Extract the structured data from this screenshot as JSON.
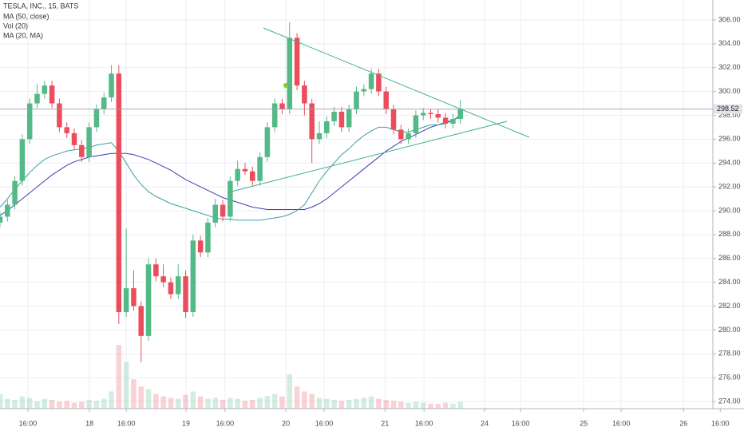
{
  "chart_data": {
    "type": "candlestick",
    "title": "TESLA, INC., 15, BATS",
    "x": [
      0,
      2,
      4,
      6,
      8,
      10,
      12,
      14,
      16,
      18,
      20,
      22,
      24,
      26,
      28,
      30,
      32,
      34,
      36,
      38,
      40,
      42,
      44,
      46,
      48,
      50,
      52,
      54,
      56,
      58,
      60,
      62,
      64,
      66,
      68,
      70,
      72,
      74,
      76,
      78,
      80,
      82,
      84,
      86,
      88,
      90,
      92,
      94,
      96,
      98,
      100,
      102,
      104,
      106,
      108,
      110,
      112,
      114,
      116,
      118,
      120,
      122,
      124
    ],
    "open": [
      289.0,
      289.5,
      290.5,
      292.5,
      296,
      299,
      299.8,
      300.5,
      299,
      297,
      296.5,
      295.5,
      294.5,
      297,
      298.5,
      299.5,
      301.5,
      281.5,
      283.5,
      282,
      279.5,
      285.5,
      284.5,
      284,
      283,
      284.5,
      281.5,
      287.5,
      286.5,
      289,
      290.5,
      289.5,
      292.5,
      293.5,
      293.3,
      292.5,
      294.5,
      297,
      299,
      298.5,
      304.5,
      300.5,
      299,
      296,
      296.5,
      297.5,
      298.3,
      297,
      298.5,
      300,
      300.2,
      301.5,
      300,
      298.5,
      296.8,
      296,
      296.5,
      298,
      298.2,
      298.1,
      297.8,
      297.3,
      297.7
    ],
    "high": [
      289.9,
      290.9,
      292.9,
      296.4,
      299.4,
      300.6,
      300.9,
      300.9,
      299.4,
      297.4,
      296.9,
      295.9,
      297.4,
      298.9,
      299.9,
      302.2,
      302.2,
      288.5,
      285,
      282.4,
      286,
      286,
      285.5,
      284.4,
      285.5,
      285,
      288,
      287.9,
      289.4,
      291,
      290.9,
      292.9,
      294.2,
      294,
      293.7,
      294.9,
      297.4,
      299.4,
      299.4,
      305.8,
      304.9,
      300.9,
      299.4,
      297.5,
      297.9,
      298.7,
      298.7,
      298.9,
      300.4,
      300.6,
      301.9,
      301.9,
      300.4,
      298.9,
      297.2,
      296.9,
      298.4,
      298.6,
      298.5,
      298.5,
      298.2,
      298.1,
      299.3
    ],
    "low": [
      288.6,
      289.1,
      290.1,
      292.1,
      295.6,
      298.6,
      299.4,
      298.6,
      296.6,
      296.1,
      295.1,
      294.1,
      294.1,
      296.6,
      298.1,
      299.1,
      280.5,
      281.1,
      281.6,
      277.3,
      279.1,
      284.1,
      283.6,
      282.6,
      282.6,
      281,
      281.1,
      286.1,
      286.1,
      288.6,
      289.1,
      289.1,
      292.1,
      293,
      292.1,
      292.1,
      294.1,
      296.6,
      298.1,
      298.1,
      300.1,
      298,
      294,
      295.6,
      296.1,
      297.1,
      296.6,
      296.6,
      298.1,
      299.6,
      299.8,
      299.6,
      298.1,
      296.4,
      295.6,
      295.6,
      296.1,
      297.6,
      297.7,
      297.4,
      296.9,
      296.9,
      297.3
    ],
    "close": [
      289.5,
      290.5,
      292.5,
      296,
      299,
      299.8,
      300.5,
      299,
      297,
      296.5,
      295.5,
      294.5,
      297,
      298.5,
      299.5,
      301.5,
      281.5,
      283.5,
      282,
      279.5,
      285.5,
      284.5,
      284,
      283,
      284.5,
      281.5,
      287.5,
      286.5,
      289,
      290.5,
      289.5,
      292.5,
      293.5,
      293.3,
      292.5,
      294.5,
      297,
      299,
      298.5,
      304.5,
      300.5,
      299,
      296,
      296.5,
      297.5,
      298.3,
      297,
      298.5,
      300,
      300.2,
      301.5,
      300,
      298.5,
      296.8,
      296,
      296.5,
      298,
      298.2,
      298.1,
      297.8,
      297.3,
      297.7,
      298.52
    ],
    "volume": {
      "name": "Vol (20)",
      "values": [
        30,
        20,
        18,
        25,
        22,
        15,
        20,
        18,
        14,
        16,
        12,
        14,
        18,
        16,
        20,
        35,
        130,
        95,
        60,
        45,
        40,
        30,
        25,
        22,
        20,
        28,
        35,
        25,
        20,
        22,
        18,
        22,
        20,
        16,
        18,
        22,
        26,
        30,
        25,
        70,
        45,
        35,
        30,
        22,
        20,
        18,
        16,
        18,
        20,
        22,
        25,
        20,
        18,
        16,
        14,
        12,
        14,
        12,
        10,
        10,
        12,
        10,
        14
      ]
    },
    "series": [
      {
        "name": "MA (50, close)",
        "color": "#3c3fb0",
        "values": [
          289.6,
          290.0,
          290.5,
          291.0,
          291.5,
          292.0,
          292.5,
          293.0,
          293.4,
          293.8,
          294.1,
          294.3,
          294.5,
          294.6,
          294.7,
          294.8,
          294.8,
          294.8,
          294.7,
          294.5,
          294.3,
          294.0,
          293.7,
          293.4,
          293.0,
          292.6,
          292.3,
          292.0,
          291.7,
          291.4,
          291.1,
          290.9,
          290.7,
          290.5,
          290.3,
          290.2,
          290.1,
          290.1,
          290.1,
          290.1,
          290.1,
          290.1,
          290.3,
          290.6,
          291.0,
          291.5,
          292.0,
          292.5,
          293.0,
          293.5,
          294.0,
          294.5,
          295.0,
          295.4,
          295.8,
          296.1,
          296.4,
          296.7,
          297.0,
          297.2,
          297.4,
          297.6,
          297.9
        ]
      },
      {
        "name": "MA (20, MA)",
        "color": "#3a9ea5",
        "values": [
          290.3,
          291,
          291.8,
          292.5,
          293.2,
          293.8,
          294.3,
          294.6,
          294.8,
          295,
          295.1,
          295.2,
          295.3,
          295.5,
          295.6,
          295.7,
          295,
          294,
          293,
          292.2,
          291.6,
          291.2,
          290.9,
          290.6,
          290.4,
          290.2,
          290,
          289.8,
          289.6,
          289.4,
          289.3,
          289.3,
          289.2,
          289.2,
          289.2,
          289.2,
          289.3,
          289.4,
          289.5,
          289.7,
          290,
          290.5,
          291.5,
          292.5,
          293.3,
          294,
          294.7,
          295.2,
          295.8,
          296.3,
          296.7,
          297,
          297,
          296.8,
          296.6,
          296.6,
          296.8,
          297,
          297.2,
          297.2,
          297.3,
          297.6,
          298
        ]
      }
    ],
    "up_color": "#53b987",
    "down_color": "#eb4d5c",
    "last_price": 298.52,
    "xlim": [
      0,
      192
    ],
    "xticks": [
      {
        "value": 7.5,
        "label": "16:00"
      },
      {
        "value": 24.1,
        "label": "18"
      },
      {
        "value": 34,
        "label": "16:00"
      },
      {
        "value": 50.1,
        "label": "19"
      },
      {
        "value": 60.6,
        "label": "16:00"
      },
      {
        "value": 77,
        "label": "20"
      },
      {
        "value": 87.3,
        "label": "16:00"
      },
      {
        "value": 103.7,
        "label": "21"
      },
      {
        "value": 114.2,
        "label": "16:00"
      },
      {
        "value": 130.5,
        "label": "24"
      },
      {
        "value": 140.2,
        "label": "16:00"
      },
      {
        "value": 157.2,
        "label": "25"
      },
      {
        "value": 167.3,
        "label": "16:00"
      },
      {
        "value": 184.1,
        "label": "26"
      },
      {
        "value": 194,
        "label": "16:00"
      }
    ],
    "ylim": [
      273.4,
      307.67
    ],
    "yticks": [
      {
        "value": 274,
        "label": "274.00"
      },
      {
        "value": 276,
        "label": "276.00"
      },
      {
        "value": 278,
        "label": "278.00"
      },
      {
        "value": 280,
        "label": "280.00"
      },
      {
        "value": 282,
        "label": "282.00"
      },
      {
        "value": 284,
        "label": "284.00"
      },
      {
        "value": 286,
        "label": "286.00"
      },
      {
        "value": 288,
        "label": "288.00"
      },
      {
        "value": 290,
        "label": "290.00"
      },
      {
        "value": 292,
        "label": "292.00"
      },
      {
        "value": 294,
        "label": "294.00"
      },
      {
        "value": 296,
        "label": "296.00"
      },
      {
        "value": 298,
        "label": "298.00"
      },
      {
        "value": 300,
        "label": "300.00"
      },
      {
        "value": 302,
        "label": "302.00"
      },
      {
        "value": 304,
        "label": "304.00"
      },
      {
        "value": 306,
        "label": "306.00"
      }
    ],
    "grid": true
  }
}
